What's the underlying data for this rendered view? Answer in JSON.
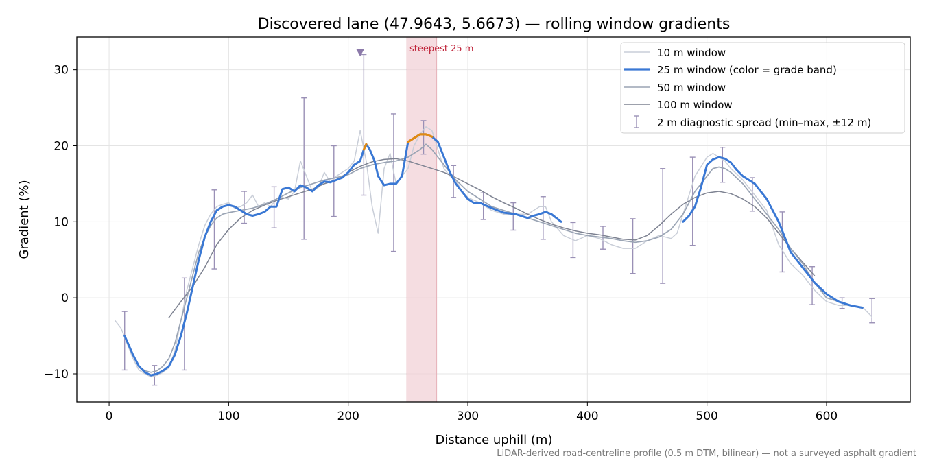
{
  "chart_data": {
    "type": "line",
    "title": "Discovered lane (47.9643, 5.6673) — rolling window gradients",
    "xlabel": "Distance uphill (m)",
    "ylabel": "Gradient (%)",
    "xlim": [
      -27,
      670
    ],
    "ylim": [
      -13.7,
      34.3
    ],
    "x_ticks": [
      0,
      100,
      200,
      300,
      400,
      500,
      600
    ],
    "x_tick_labels": [
      "0",
      "100",
      "200",
      "300",
      "400",
      "500",
      "600"
    ],
    "y_ticks": [
      -10,
      0,
      10,
      20,
      30
    ],
    "y_tick_labels": [
      "−10",
      "0",
      "10",
      "20",
      "30"
    ],
    "grid": true,
    "legend_position": "top-right",
    "steepest_band": {
      "x0": 249,
      "x1": 274,
      "label": "steepest 25 m"
    },
    "max_marker": {
      "x": 210,
      "y": 32.2
    },
    "footnote": "LiDAR-derived road-centreline profile (0.5 m DTM, bilinear) — not a surveyed asphalt gradient",
    "colors": {
      "w10": "#c9ced8",
      "w25_base": "#3a78d4",
      "w25_steep": "#e08a14",
      "w50": "#9aa4b4",
      "w100": "#7d8291",
      "errorbar": "#9a90b6",
      "band": "#f1cfd4",
      "annotation": "#c0243a",
      "marker": "#8c7aaa"
    },
    "series": [
      {
        "name": "10 m window",
        "x": [
          5,
          10,
          15,
          20,
          25,
          30,
          35,
          40,
          45,
          50,
          55,
          60,
          65,
          70,
          75,
          80,
          85,
          90,
          95,
          100,
          105,
          110,
          115,
          120,
          125,
          130,
          135,
          140,
          145,
          150,
          155,
          160,
          165,
          170,
          175,
          180,
          185,
          190,
          195,
          200,
          205,
          210,
          215,
          220,
          225,
          230,
          235,
          240,
          245,
          250,
          255,
          260,
          265,
          270,
          275,
          280,
          285,
          290,
          295,
          300,
          310,
          320,
          330,
          340,
          350,
          360,
          365,
          370,
          380,
          390,
          400,
          410,
          420,
          430,
          440,
          450,
          460,
          470,
          475,
          480,
          490,
          500,
          505,
          510,
          515,
          520,
          530,
          540,
          550,
          560,
          570,
          580,
          590,
          600,
          610,
          620,
          630,
          638
        ],
        "values": [
          -3,
          -4,
          -6,
          -8,
          -9.5,
          -10,
          -10.4,
          -10.2,
          -9.8,
          -9.2,
          -7,
          -3,
          1,
          4,
          7,
          9.5,
          11,
          12,
          12.3,
          12.5,
          11.8,
          12,
          12.5,
          13.5,
          12,
          12.5,
          12,
          13,
          13.2,
          13,
          14,
          18,
          16,
          14,
          14.5,
          16.5,
          15.2,
          16,
          16.5,
          17,
          18,
          22,
          18,
          12,
          8.5,
          17,
          19,
          15,
          16,
          17,
          20,
          21.5,
          22.5,
          22,
          19.5,
          17,
          16,
          15.5,
          14,
          13.2,
          12.5,
          11.5,
          11,
          11,
          11,
          12,
          12,
          10,
          8.2,
          7.5,
          8.2,
          7.8,
          7,
          6.5,
          6.5,
          7.5,
          8.2,
          7.8,
          8.5,
          11,
          16,
          18.5,
          19,
          18.5,
          18,
          17,
          15.5,
          13.5,
          11.5,
          7,
          4.5,
          3,
          1,
          -0.5,
          -1,
          -1,
          -1.2,
          -2.5
        ]
      },
      {
        "name": "25 m window (color = grade band)",
        "x": [
          13,
          20,
          25,
          30,
          35,
          40,
          45,
          50,
          55,
          60,
          65,
          70,
          75,
          80,
          85,
          90,
          95,
          100,
          105,
          110,
          115,
          120,
          125,
          130,
          135,
          140,
          145,
          150,
          155,
          160,
          165,
          170,
          175,
          180,
          185,
          190,
          195,
          200,
          205,
          210,
          213,
          215,
          218,
          222,
          225,
          230,
          235,
          240,
          245,
          250,
          255,
          260,
          265,
          270,
          275,
          280,
          285,
          290,
          295,
          300,
          305,
          310,
          320,
          330,
          340,
          350,
          355,
          360,
          365,
          370,
          378,
          480,
          485,
          490,
          495,
          500,
          505,
          510,
          515,
          520,
          525,
          530,
          540,
          550,
          560,
          565,
          570,
          580,
          590,
          600,
          610,
          620,
          630
        ],
        "values": [
          -5,
          -7.5,
          -9,
          -9.8,
          -10.2,
          -10,
          -9.6,
          -9,
          -7.5,
          -5,
          -2,
          1.5,
          5,
          8,
          10,
          11.5,
          12,
          12.2,
          12,
          11.5,
          11,
          10.8,
          11,
          11.3,
          12,
          12,
          14.3,
          14.5,
          14,
          14.8,
          14.5,
          14,
          14.8,
          15.3,
          15.2,
          15.5,
          15.8,
          16.5,
          17.5,
          18,
          19.5,
          20.2,
          19.5,
          18,
          16,
          14.8,
          15,
          15,
          16,
          20.5,
          21,
          21.5,
          21.5,
          21.2,
          20.5,
          18.5,
          16.5,
          15,
          14,
          13,
          12.5,
          12.5,
          11.8,
          11.2,
          11,
          10.5,
          10.8,
          11,
          11.3,
          11,
          10,
          10,
          10.8,
          12,
          14.5,
          17.5,
          18.2,
          18.5,
          18.3,
          17.8,
          16.8,
          16,
          15,
          13,
          10,
          8,
          6,
          4,
          2,
          0.5,
          -0.5,
          -1,
          -1.3
        ],
        "steep_segments": [
          [
            211,
            216
          ],
          [
            250,
            274
          ]
        ]
      },
      {
        "name": "50 m window",
        "x": [
          13,
          20,
          25,
          30,
          35,
          40,
          45,
          50,
          55,
          60,
          65,
          70,
          75,
          80,
          85,
          90,
          95,
          100,
          110,
          120,
          130,
          140,
          150,
          160,
          170,
          180,
          190,
          200,
          210,
          220,
          230,
          240,
          250,
          260,
          265,
          270,
          280,
          290,
          300,
          310,
          320,
          330,
          340,
          350,
          360,
          370,
          380,
          390,
          400,
          410,
          420,
          430,
          440,
          450,
          460,
          470,
          480,
          490,
          500,
          505,
          510,
          515,
          520,
          530,
          540,
          550,
          560,
          570,
          580,
          590,
          600,
          610,
          620,
          630
        ],
        "values": [
          -5,
          -7.5,
          -9,
          -9.6,
          -9.8,
          -9.6,
          -9,
          -8,
          -6,
          -3,
          0,
          3,
          6,
          8,
          9.5,
          10.5,
          11,
          11.2,
          11.5,
          11.8,
          12.3,
          13,
          13.8,
          14.5,
          15,
          15.5,
          15.8,
          16.2,
          17,
          17.5,
          17.8,
          18,
          18.5,
          19.5,
          20.2,
          19.5,
          17.5,
          15.5,
          14,
          13,
          12,
          11.5,
          11,
          10.5,
          10,
          9.5,
          9,
          8.5,
          8.2,
          8,
          7.8,
          7.5,
          7.3,
          7.5,
          8,
          9,
          11,
          14,
          16,
          17,
          17.2,
          17,
          16.5,
          15,
          13,
          11,
          9,
          6.5,
          4.5,
          2,
          0,
          -0.5,
          -1,
          -1.3
        ]
      },
      {
        "name": "100 m window",
        "x": [
          50,
          60,
          70,
          80,
          90,
          100,
          110,
          120,
          130,
          140,
          150,
          160,
          170,
          180,
          190,
          200,
          210,
          220,
          230,
          240,
          250,
          260,
          270,
          280,
          290,
          300,
          310,
          320,
          330,
          340,
          350,
          360,
          370,
          380,
          390,
          400,
          410,
          420,
          430,
          440,
          450,
          460,
          470,
          480,
          490,
          500,
          510,
          520,
          530,
          540,
          550,
          560,
          570,
          580,
          590
        ],
        "values": [
          -2.6,
          -0.5,
          1.5,
          4,
          7,
          9,
          10.5,
          11.5,
          12.2,
          12.8,
          13.3,
          13.8,
          14.3,
          15,
          15.5,
          16.5,
          17.3,
          17.9,
          18.2,
          18.3,
          18,
          17.5,
          17,
          16.5,
          15.8,
          15,
          14.2,
          13.3,
          12.5,
          11.8,
          11,
          10.3,
          9.7,
          9.2,
          8.8,
          8.5,
          8.3,
          8,
          7.7,
          7.6,
          8.2,
          9.5,
          11,
          12.3,
          13.2,
          13.8,
          14,
          13.7,
          13,
          12,
          10.5,
          8.5,
          6.5,
          4.7,
          2.9
        ]
      }
    ],
    "errorbars": {
      "name": "2 m diagnostic spread (min–max, ±12 m)",
      "x": [
        13,
        38,
        63,
        88,
        113,
        138,
        163,
        188,
        213,
        238,
        263,
        288,
        313,
        338,
        363,
        388,
        413,
        438,
        463,
        488,
        513,
        538,
        563,
        588,
        613,
        638
      ],
      "lower": [
        -9.5,
        -11.5,
        -9.5,
        3.8,
        9.8,
        9.2,
        7.7,
        10.7,
        13.5,
        6.1,
        18.9,
        13.2,
        10.3,
        8.9,
        7.7,
        5.3,
        6.4,
        3.2,
        1.9,
        6.9,
        15.2,
        11.4,
        3.4,
        -0.9,
        -1.4,
        -3.3
      ],
      "upper": [
        -1.8,
        -8.9,
        2.6,
        14.2,
        14.0,
        14.6,
        26.3,
        20.0,
        32.0,
        24.2,
        23.3,
        17.4,
        13.8,
        12.5,
        13.3,
        9.9,
        9.4,
        10.4,
        17.0,
        18.5,
        19.8,
        15.8,
        11.3,
        4.1,
        0.0,
        -0.1
      ]
    }
  }
}
